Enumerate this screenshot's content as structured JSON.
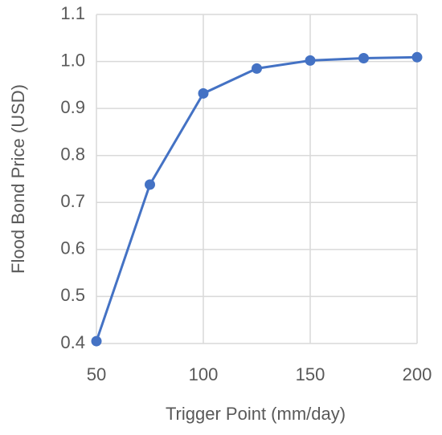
{
  "chart_data": {
    "type": "line",
    "x_label": "Trigger Point (mm/day)",
    "y_label": "Flood Bond Price (USD)",
    "series": [
      {
        "color": "#4472c4",
        "x": [
          50,
          75,
          100,
          125,
          150,
          175,
          200
        ],
        "values": [
          0.405,
          0.738,
          0.932,
          0.985,
          1.002,
          1.007,
          1.009
        ]
      }
    ],
    "xlim": [
      50,
      200
    ],
    "xticks": [
      50,
      100,
      150,
      200
    ],
    "ylim": [
      0.4,
      1.1
    ],
    "yticks": [
      0.4,
      0.5,
      0.6,
      0.7,
      0.8,
      0.9,
      {
        "value": 1,
        "label": "1.0"
      },
      1.1
    ],
    "grid": true
  }
}
